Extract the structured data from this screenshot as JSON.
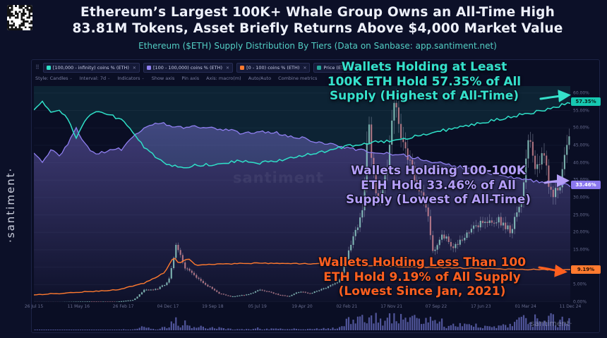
{
  "header": {
    "title_line1": "Ethereum’s Largest 100K+ Whale Group Owns an All-Time High",
    "title_line2": "83.81M Tokens, Asset Briefly Returns Above $4,000 Market Value",
    "subtitle": "Ethereum ($ETH) Supply Distribution By Tiers (Data on Sanbase: app.santiment.net)"
  },
  "branding": {
    "side": "·santiment·",
    "center": "santiment",
    "corner": "·santiment·"
  },
  "glyphs": {
    "close": "✕",
    "caret": "⌄",
    "handle": "⠿"
  },
  "legend": [
    {
      "label": "[100,000 - infinity) coins % (ETH)",
      "color": "#2fe0c8"
    },
    {
      "label": "[100 - 100,000) coins % (ETH)",
      "color": "#8f7ff0"
    },
    {
      "label": "[0 - 100) coins % (ETH)",
      "color": "#ff7a2f"
    },
    {
      "label": "Price (ETH)",
      "color": "#26a69a"
    }
  ],
  "toolbar": {
    "items": [
      "Style: Candles",
      "Interval: 7d",
      "Indicators",
      "Show axis",
      "Pin axis",
      "Axis: macro(m)",
      "Auto/Auto",
      "Combine metrics"
    ]
  },
  "annotations": [
    {
      "id": "whales-100k",
      "color": "#35e2cb",
      "lines": [
        "Wallets Holding at Least",
        "100K ETH Hold 57.35% of All",
        "Supply (Highest of All-Time)"
      ]
    },
    {
      "id": "mid-tier",
      "color": "#b49ef7",
      "lines": [
        "Wallets Holding 100-100K",
        "ETH Hold 33.46% of All",
        "Supply (Lowest of All-Time)"
      ]
    },
    {
      "id": "retail",
      "color": "#ff5f1f",
      "lines": [
        "Wallets Holding Less Than 100",
        "ETH Hold 9.19% of All Supply",
        "(Lowest Since Jan, 2021)"
      ]
    }
  ],
  "right_axis": {
    "badges": [
      {
        "label": "57.35%",
        "value": 57.35,
        "color": "#17c9b2",
        "text_color": "#07201b"
      },
      {
        "label": "33.46%",
        "value": 33.46,
        "color": "#8b78f0",
        "text_color": "#ffffff"
      },
      {
        "label": "9.19%",
        "value": 9.19,
        "color": "#ff7a2f",
        "text_color": "#201006"
      }
    ]
  },
  "chart_data": {
    "type": "line",
    "title": "Ethereum ($ETH) Supply Distribution By Tiers",
    "x_unit": "decimal_year",
    "x_range": [
      2015.55,
      2024.95
    ],
    "x_ticks": [
      "26 Jul 15",
      "11 May 16",
      "26 Feb 17",
      "04 Dec 17",
      "19 Sep 18",
      "05 Jul 19",
      "19 Apr 20",
      "02 Feb 21",
      "17 Nov 21",
      "07 Sep 22",
      "17 Jun 23",
      "01 Mar 24",
      "11 Dec 24"
    ],
    "percent_axis": {
      "min": 0,
      "max": 62,
      "ticks": [
        "60.00%",
        "55.00%",
        "50.00%",
        "45.00%",
        "40.00%",
        "35.00%",
        "30.00%",
        "25.00%",
        "20.00%",
        "15.00%",
        "10.00%",
        "5.00%",
        "0.00%"
      ]
    },
    "price_axis": {
      "min": 0,
      "max": 5000
    },
    "grid": true,
    "legend_position": "top-left",
    "series": [
      {
        "name": "[100,000 - infinity) coins % (ETH)",
        "color": "#2fe0c8",
        "axis": "percent",
        "style": "line_area_above",
        "x": [
          2015.55,
          2015.7,
          2015.85,
          2016.0,
          2016.15,
          2016.3,
          2016.45,
          2016.6,
          2016.75,
          2016.9,
          2017.1,
          2017.3,
          2017.5,
          2017.7,
          2017.9,
          2018.1,
          2018.3,
          2018.6,
          2018.9,
          2019.2,
          2019.5,
          2019.8,
          2020.1,
          2020.4,
          2020.7,
          2021.0,
          2021.3,
          2021.6,
          2021.9,
          2022.2,
          2022.5,
          2022.8,
          2023.1,
          2023.4,
          2023.7,
          2024.0,
          2024.3,
          2024.6,
          2024.8,
          2024.95
        ],
        "values": [
          55.5,
          57.5,
          54.0,
          55.5,
          52.0,
          47.0,
          52.0,
          54.5,
          54.0,
          53.5,
          52.5,
          48.0,
          44.0,
          41.5,
          39.5,
          38.5,
          39.0,
          39.5,
          40.0,
          40.5,
          40.0,
          40.5,
          41.5,
          42.5,
          43.5,
          44.5,
          45.5,
          46.0,
          46.5,
          47.5,
          48.5,
          49.5,
          50.5,
          51.5,
          52.5,
          53.5,
          54.5,
          55.5,
          56.5,
          57.35
        ]
      },
      {
        "name": "[100 - 100,000) coins % (ETH)",
        "color": "#8f7ff0",
        "axis": "percent",
        "style": "line_area_below",
        "x": [
          2015.55,
          2015.7,
          2015.85,
          2016.0,
          2016.15,
          2016.3,
          2016.45,
          2016.6,
          2016.75,
          2016.9,
          2017.1,
          2017.3,
          2017.5,
          2017.7,
          2017.9,
          2018.1,
          2018.3,
          2018.6,
          2018.9,
          2019.2,
          2019.5,
          2019.8,
          2020.1,
          2020.4,
          2020.7,
          2021.0,
          2021.3,
          2021.6,
          2021.9,
          2022.2,
          2022.5,
          2022.8,
          2023.1,
          2023.4,
          2023.7,
          2024.0,
          2024.3,
          2024.6,
          2024.8,
          2024.95
        ],
        "values": [
          42.5,
          40.5,
          43.5,
          42.0,
          45.5,
          50.0,
          45.0,
          42.5,
          43.0,
          43.5,
          44.0,
          47.5,
          50.5,
          51.5,
          51.0,
          50.0,
          50.5,
          50.0,
          49.5,
          48.5,
          49.0,
          48.5,
          47.5,
          46.5,
          45.5,
          44.5,
          43.5,
          43.0,
          42.5,
          41.5,
          40.5,
          39.5,
          38.5,
          37.5,
          36.5,
          35.5,
          34.8,
          34.2,
          33.8,
          33.46
        ]
      },
      {
        "name": "[0 - 100) coins % (ETH)",
        "color": "#ff7a2f",
        "axis": "percent",
        "style": "line",
        "x": [
          2015.55,
          2016.0,
          2016.5,
          2017.0,
          2017.5,
          2017.85,
          2018.0,
          2018.1,
          2018.25,
          2018.4,
          2018.7,
          2019.0,
          2019.5,
          2020.0,
          2020.5,
          2021.0,
          2021.5,
          2022.0,
          2022.5,
          2023.0,
          2023.5,
          2024.0,
          2024.5,
          2024.95
        ],
        "values": [
          2.0,
          2.5,
          3.0,
          3.5,
          5.5,
          8.5,
          13.0,
          11.0,
          12.5,
          10.5,
          10.8,
          11.0,
          11.2,
          11.0,
          11.0,
          10.8,
          10.5,
          10.2,
          10.0,
          9.8,
          9.6,
          9.4,
          9.3,
          9.19
        ]
      },
      {
        "name": "Price (ETH)",
        "color": "#cfd4ea",
        "axis": "price",
        "style": "candles",
        "x": [
          2015.55,
          2016.0,
          2016.5,
          2017.0,
          2017.3,
          2017.5,
          2017.7,
          2017.9,
          2018.05,
          2018.2,
          2018.5,
          2018.8,
          2019.0,
          2019.3,
          2019.5,
          2019.8,
          2020.0,
          2020.2,
          2020.4,
          2020.7,
          2020.9,
          2021.1,
          2021.3,
          2021.42,
          2021.5,
          2021.6,
          2021.75,
          2021.88,
          2022.0,
          2022.2,
          2022.45,
          2022.55,
          2022.7,
          2022.9,
          2023.1,
          2023.3,
          2023.5,
          2023.7,
          2023.9,
          2024.1,
          2024.2,
          2024.35,
          2024.5,
          2024.6,
          2024.75,
          2024.85,
          2024.92,
          2024.95
        ],
        "values": [
          1,
          1,
          12,
          8,
          50,
          300,
          290,
          450,
          1350,
          800,
          450,
          200,
          130,
          170,
          290,
          180,
          130,
          240,
          200,
          350,
          480,
          1300,
          2050,
          4200,
          2900,
          2300,
          3100,
          4750,
          3700,
          3000,
          2000,
          1100,
          1600,
          1250,
          1550,
          1800,
          1850,
          1900,
          1650,
          2300,
          3900,
          3100,
          3400,
          2500,
          2600,
          3300,
          4050,
          3900
        ]
      }
    ]
  }
}
